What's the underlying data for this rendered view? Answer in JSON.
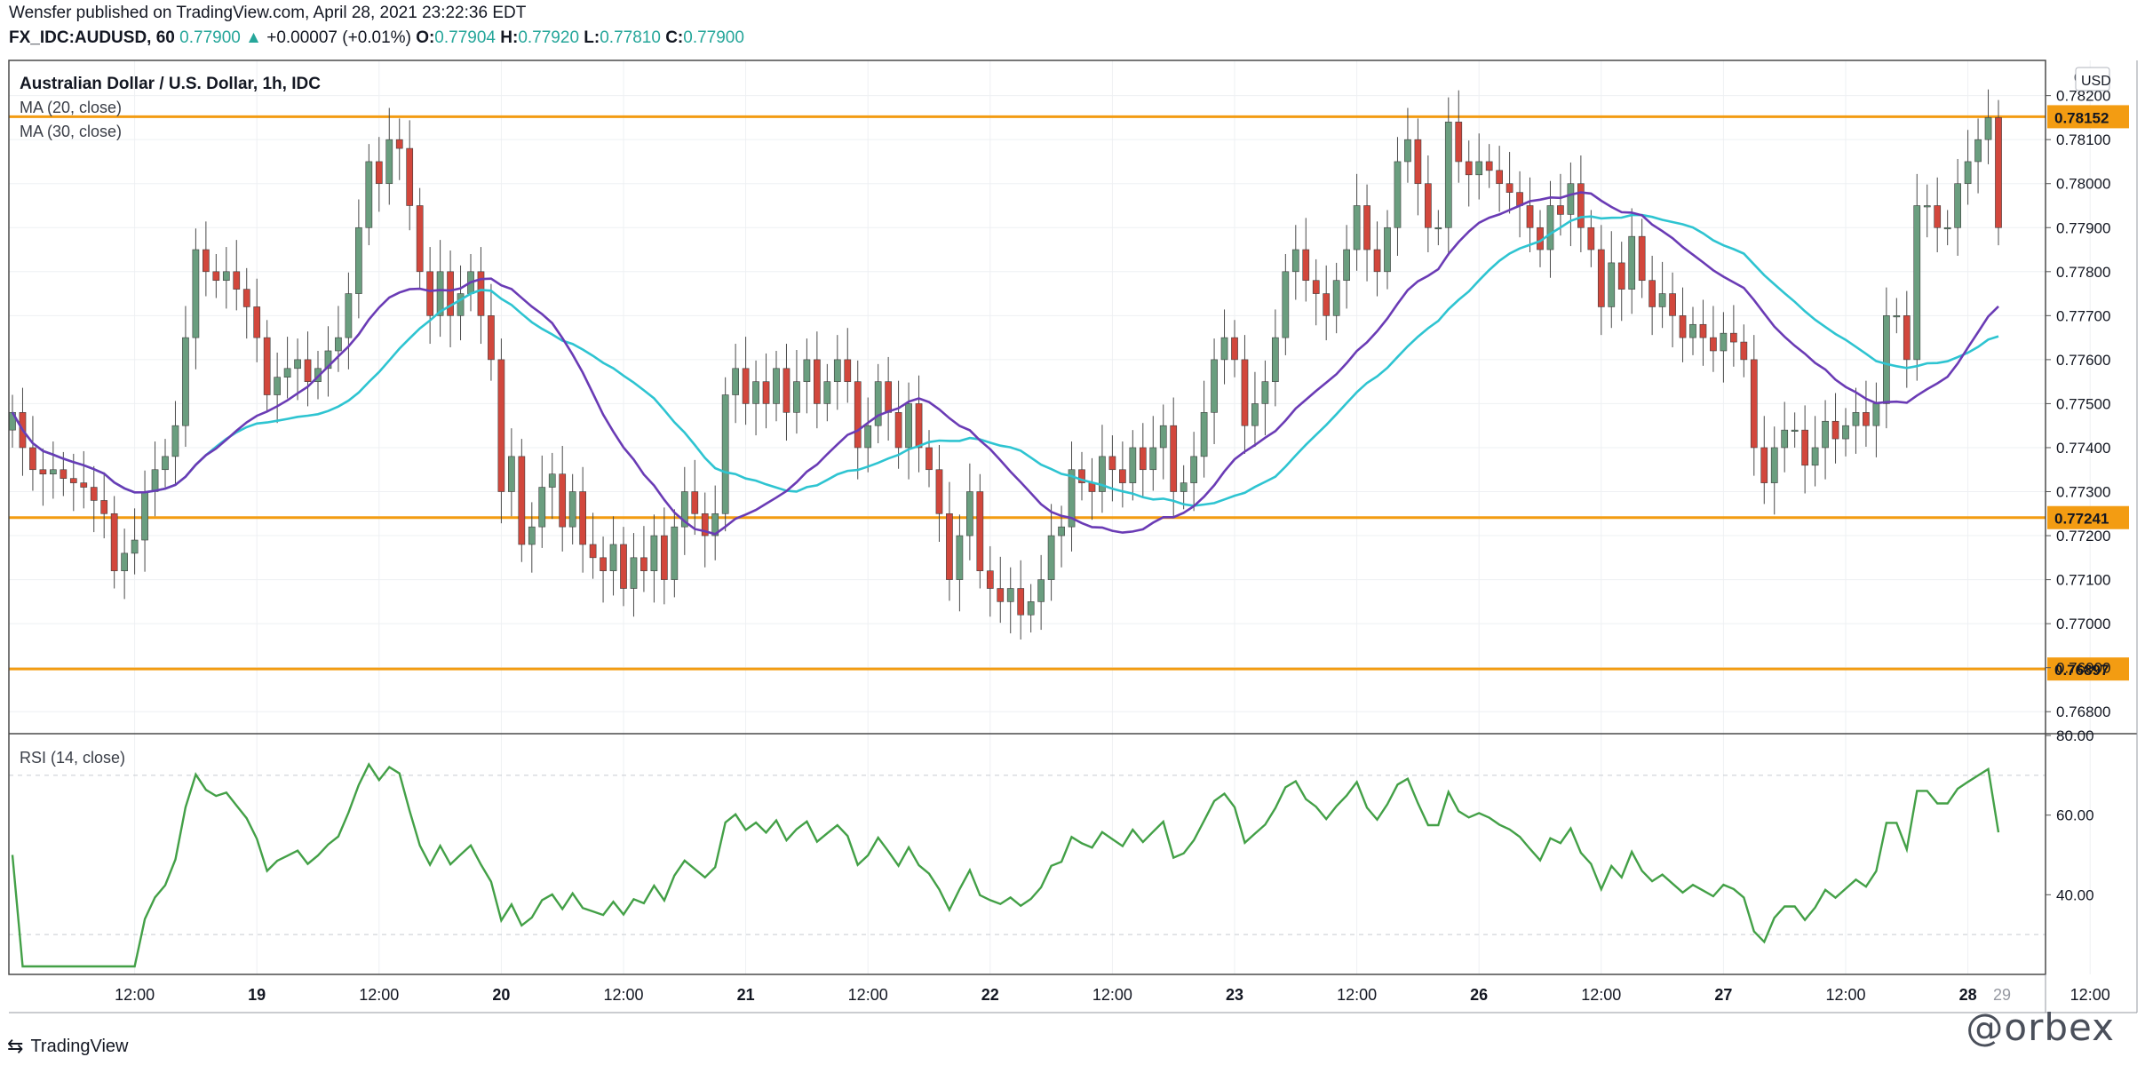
{
  "header": {
    "publisher_line": "Wensfer published on TradingView.com, April 28, 2021 23:22:36 EDT",
    "symbol": "FX_IDC:AUDUSD, 60",
    "last": "0.77900",
    "change": "+0.00007 (+0.01%)",
    "change_arrow": "▲",
    "o_label": "O:",
    "o_value": "0.77904",
    "h_label": "H:",
    "h_value": "0.77920",
    "l_label": "L:",
    "l_value": "0.77810",
    "c_label": "C:",
    "c_value": "0.77900"
  },
  "legend": {
    "title": "Australian Dollar / U.S. Dollar, 1h, IDC",
    "ma20": "MA (20, close)",
    "ma30": "MA (30, close)",
    "rsi": "RSI (14, close)"
  },
  "footer": {
    "brand": "TradingView",
    "watermark": "@orbex"
  },
  "colors": {
    "up": "#6a9e7f",
    "down": "#d2473c",
    "ma20": "#6a3bb5",
    "ma30": "#2ec4d1",
    "rsi": "#43a047",
    "level": "#f39c12",
    "grid": "#eef0f3",
    "axis": "#555555"
  },
  "chart_data": {
    "type": "candlestick",
    "price_axis": {
      "currency": "USD",
      "ticks": [
        "0.78200",
        "0.78100",
        "0.78000",
        "0.77900",
        "0.77800",
        "0.77700",
        "0.77600",
        "0.77500",
        "0.77400",
        "0.77300",
        "0.77200",
        "0.77100",
        "0.77000",
        "0.76900",
        "0.76800"
      ],
      "top_label": "0",
      "ylim": [
        0.7675,
        0.7828
      ]
    },
    "time_axis": {
      "labels": [
        {
          "t": 12,
          "text": "12:00"
        },
        {
          "t": 24,
          "text": "19"
        },
        {
          "t": 36,
          "text": "12:00"
        },
        {
          "t": 48,
          "text": "20"
        },
        {
          "t": 60,
          "text": "12:00"
        },
        {
          "t": 72,
          "text": "21"
        },
        {
          "t": 84,
          "text": "12:00"
        },
        {
          "t": 96,
          "text": "22"
        },
        {
          "t": 108,
          "text": "12:00"
        },
        {
          "t": 120,
          "text": "23"
        },
        {
          "t": 132,
          "text": "12:00"
        },
        {
          "t": 144,
          "text": "26"
        },
        {
          "t": 156,
          "text": "12:00"
        },
        {
          "t": 168,
          "text": "27"
        },
        {
          "t": 180,
          "text": "12:00"
        },
        {
          "t": 192,
          "text": "28"
        },
        {
          "t": 204,
          "text": "12:00"
        }
      ],
      "last_label": "29"
    },
    "levels": [
      {
        "value": 0.78152,
        "label": "0.78152"
      },
      {
        "value": 0.77241,
        "label": "0.77241"
      },
      {
        "value": 0.76897,
        "label": "0.76897"
      }
    ],
    "close": [
      0.7748,
      0.774,
      0.7735,
      0.7734,
      0.7735,
      0.7733,
      0.7732,
      0.7731,
      0.7728,
      0.7725,
      0.7712,
      0.7716,
      0.7719,
      0.773,
      0.7735,
      0.7738,
      0.7745,
      0.7765,
      0.7785,
      0.778,
      0.7778,
      0.778,
      0.7776,
      0.7772,
      0.7765,
      0.7752,
      0.7756,
      0.7758,
      0.776,
      0.7755,
      0.7758,
      0.7762,
      0.7765,
      0.7775,
      0.779,
      0.7805,
      0.78,
      0.781,
      0.7808,
      0.7795,
      0.778,
      0.777,
      0.778,
      0.777,
      0.7775,
      0.778,
      0.777,
      0.776,
      0.773,
      0.7738,
      0.7718,
      0.7722,
      0.7731,
      0.7734,
      0.7722,
      0.773,
      0.7718,
      0.7715,
      0.7712,
      0.7718,
      0.7708,
      0.7715,
      0.7712,
      0.772,
      0.771,
      0.7722,
      0.773,
      0.7725,
      0.772,
      0.7725,
      0.7752,
      0.7758,
      0.775,
      0.7755,
      0.775,
      0.7758,
      0.7748,
      0.7755,
      0.776,
      0.775,
      0.7755,
      0.776,
      0.7755,
      0.774,
      0.7745,
      0.7755,
      0.7748,
      0.774,
      0.775,
      0.774,
      0.7735,
      0.7725,
      0.771,
      0.772,
      0.773,
      0.7712,
      0.7708,
      0.7705,
      0.7708,
      0.7702,
      0.7705,
      0.771,
      0.772,
      0.7722,
      0.7735,
      0.7732,
      0.773,
      0.7738,
      0.7735,
      0.7732,
      0.774,
      0.7735,
      0.774,
      0.7745,
      0.773,
      0.7732,
      0.7738,
      0.7748,
      0.776,
      0.7765,
      0.776,
      0.7745,
      0.775,
      0.7755,
      0.7765,
      0.778,
      0.7785,
      0.7778,
      0.7775,
      0.777,
      0.7778,
      0.7785,
      0.7795,
      0.7785,
      0.778,
      0.779,
      0.7805,
      0.781,
      0.78,
      0.779,
      0.779,
      0.7814,
      0.7805,
      0.7802,
      0.7805,
      0.7803,
      0.78,
      0.7798,
      0.7795,
      0.779,
      0.7785,
      0.7795,
      0.7793,
      0.78,
      0.779,
      0.7785,
      0.7772,
      0.7782,
      0.7776,
      0.7788,
      0.7778,
      0.7772,
      0.7775,
      0.777,
      0.7765,
      0.7768,
      0.7765,
      0.7762,
      0.7766,
      0.7764,
      0.776,
      0.774,
      0.7732,
      0.774,
      0.7744,
      0.7744,
      0.7736,
      0.774,
      0.7746,
      0.7742,
      0.7745,
      0.7748,
      0.7745,
      0.775,
      0.777,
      0.777,
      0.776,
      0.7795,
      0.7795,
      0.779,
      0.779,
      0.78,
      0.7805,
      0.781,
      0.7815,
      0.779
    ]
  }
}
